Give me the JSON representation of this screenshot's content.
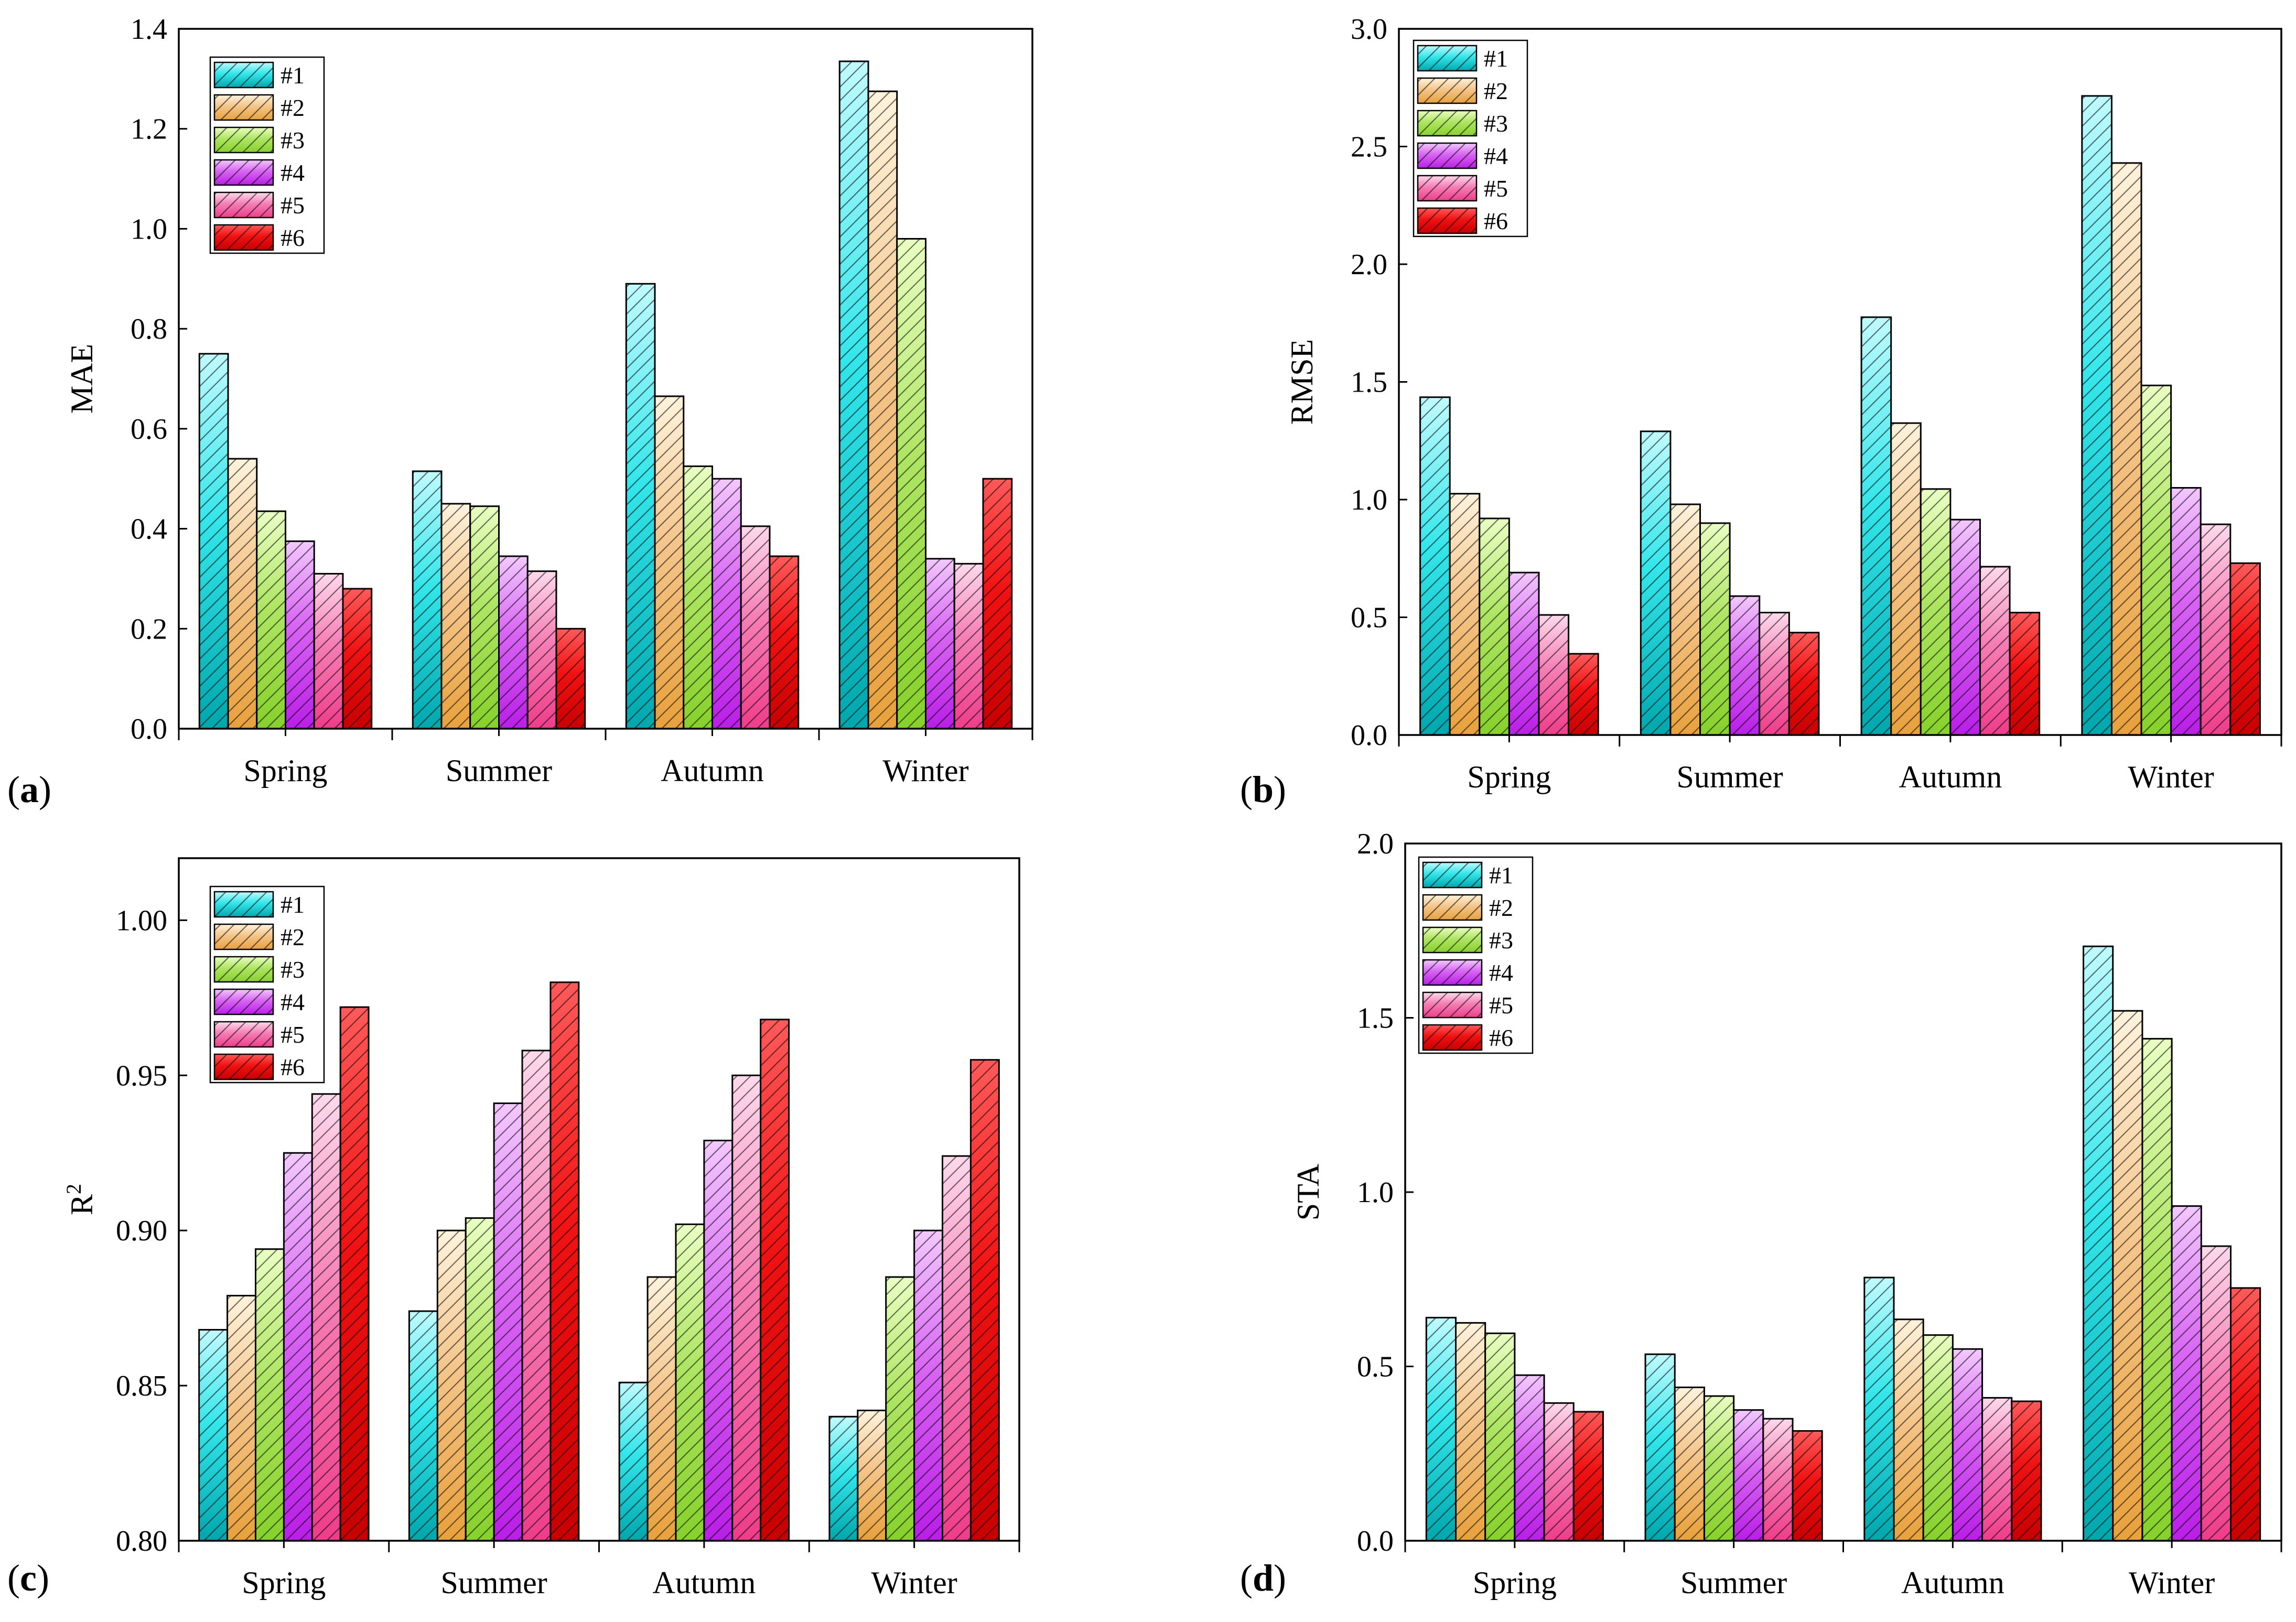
{
  "colors": {
    "#1": {
      "light": "#bffbff",
      "mid": "#33e6ea",
      "dark": "#00a7ad"
    },
    "#2": {
      "light": "#fff3dc",
      "mid": "#f4c58a",
      "dark": "#e8a13c"
    },
    "#3": {
      "light": "#e9ffc2",
      "mid": "#aee563",
      "dark": "#86d12b"
    },
    "#4": {
      "light": "#f3c8ff",
      "mid": "#d865f3",
      "dark": "#b91ee6"
    },
    "#5": {
      "light": "#ffd9ec",
      "mid": "#f57fb5",
      "dark": "#ee3d8a"
    },
    "#6": {
      "light": "#ff5a5a",
      "mid": "#f01212",
      "dark": "#c80000"
    }
  },
  "chart_data": [
    {
      "type": "bar",
      "panel_label": "(a)",
      "ylabel": "MAE",
      "ylabel_sup": "",
      "xlabel": "",
      "ylim": [
        0,
        1.4
      ],
      "yticks": [
        0.0,
        0.2,
        0.4,
        0.6,
        0.8,
        1.0,
        1.2,
        1.4
      ],
      "ytick_labels": [
        "0.0",
        "0.2",
        "0.4",
        "0.6",
        "0.8",
        "1.0",
        "1.2",
        "1.4"
      ],
      "categories": [
        "Spring",
        "Summer",
        "Autumn",
        "Winter"
      ],
      "legend": "top-left",
      "series": [
        {
          "name": "#1",
          "values": [
            0.75,
            0.515,
            0.89,
            1.335
          ]
        },
        {
          "name": "#2",
          "values": [
            0.54,
            0.45,
            0.665,
            1.275
          ]
        },
        {
          "name": "#3",
          "values": [
            0.435,
            0.445,
            0.525,
            0.98
          ]
        },
        {
          "name": "#4",
          "values": [
            0.375,
            0.345,
            0.5,
            0.34
          ]
        },
        {
          "name": "#5",
          "values": [
            0.31,
            0.315,
            0.405,
            0.33
          ]
        },
        {
          "name": "#6",
          "values": [
            0.28,
            0.2,
            0.345,
            0.5
          ]
        }
      ]
    },
    {
      "type": "bar",
      "panel_label": "(b)",
      "ylabel": "RMSE",
      "ylabel_sup": "",
      "xlabel": "",
      "ylim": [
        0,
        3.0
      ],
      "yticks": [
        0.0,
        0.5,
        1.0,
        1.5,
        2.0,
        2.5,
        3.0
      ],
      "ytick_labels": [
        "0.0",
        "0.5",
        "1.0",
        "1.5",
        "2.0",
        "2.5",
        "3.0"
      ],
      "categories": [
        "Spring",
        "Summer",
        "Autumn",
        "Winter"
      ],
      "legend": "top-left",
      "series": [
        {
          "name": "#1",
          "values": [
            1.435,
            1.29,
            1.775,
            2.715
          ]
        },
        {
          "name": "#2",
          "values": [
            1.025,
            0.98,
            1.325,
            2.43
          ]
        },
        {
          "name": "#3",
          "values": [
            0.92,
            0.9,
            1.045,
            1.485
          ]
        },
        {
          "name": "#4",
          "values": [
            0.69,
            0.59,
            0.915,
            1.05
          ]
        },
        {
          "name": "#5",
          "values": [
            0.51,
            0.52,
            0.715,
            0.895
          ]
        },
        {
          "name": "#6",
          "values": [
            0.345,
            0.435,
            0.52,
            0.73
          ]
        }
      ]
    },
    {
      "type": "bar",
      "panel_label": "(c)",
      "ylabel": "R",
      "ylabel_sup": "2",
      "xlabel": "",
      "ylim": [
        0.8,
        1.02
      ],
      "yticks": [
        0.8,
        0.85,
        0.9,
        0.95,
        1.0
      ],
      "ytick_labels": [
        "0.80",
        "0.85",
        "0.90",
        "0.95",
        "1.00"
      ],
      "categories": [
        "Spring",
        "Summer",
        "Autumn",
        "Winter"
      ],
      "legend": "top-left",
      "series": [
        {
          "name": "#1",
          "values": [
            0.868,
            0.874,
            0.851,
            0.84
          ]
        },
        {
          "name": "#2",
          "values": [
            0.879,
            0.9,
            0.885,
            0.842
          ]
        },
        {
          "name": "#3",
          "values": [
            0.894,
            0.904,
            0.902,
            0.885
          ]
        },
        {
          "name": "#4",
          "values": [
            0.925,
            0.941,
            0.929,
            0.9
          ]
        },
        {
          "name": "#5",
          "values": [
            0.944,
            0.958,
            0.95,
            0.924
          ]
        },
        {
          "name": "#6",
          "values": [
            0.972,
            0.98,
            0.968,
            0.955
          ]
        }
      ]
    },
    {
      "type": "bar",
      "panel_label": "(d)",
      "ylabel": "STA",
      "ylabel_sup": "",
      "xlabel": "",
      "ylim": [
        0,
        2.0
      ],
      "yticks": [
        0.0,
        0.5,
        1.0,
        1.5,
        2.0
      ],
      "ytick_labels": [
        "0.0",
        "0.5",
        "1.0",
        "1.5",
        "2.0"
      ],
      "categories": [
        "Spring",
        "Summer",
        "Autumn",
        "Winter"
      ],
      "legend": "top-left",
      "series": [
        {
          "name": "#1",
          "values": [
            0.64,
            0.535,
            0.755,
            1.705
          ]
        },
        {
          "name": "#2",
          "values": [
            0.625,
            0.44,
            0.635,
            1.52
          ]
        },
        {
          "name": "#3",
          "values": [
            0.595,
            0.415,
            0.59,
            1.44
          ]
        },
        {
          "name": "#4",
          "values": [
            0.475,
            0.375,
            0.55,
            0.96
          ]
        },
        {
          "name": "#5",
          "values": [
            0.395,
            0.35,
            0.41,
            0.845
          ]
        },
        {
          "name": "#6",
          "values": [
            0.37,
            0.315,
            0.4,
            0.725
          ]
        }
      ]
    }
  ]
}
